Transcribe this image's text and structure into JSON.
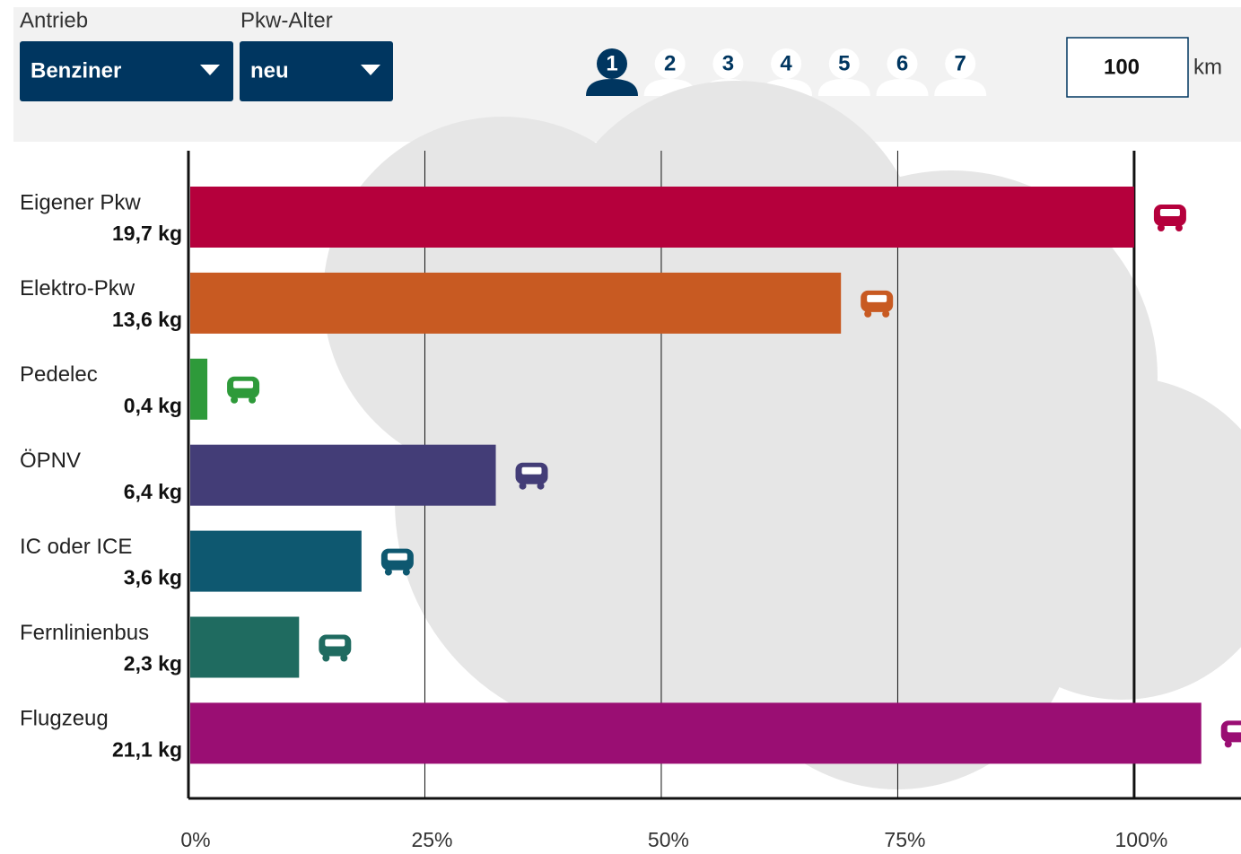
{
  "controls": {
    "drive_label": "Antrieb",
    "drive_value": "Benziner",
    "age_label": "Pkw-Alter",
    "age_value": "neu",
    "persons": [
      "1",
      "2",
      "3",
      "4",
      "5",
      "6",
      "7"
    ],
    "distance_value": "100",
    "distance_unit": "km"
  },
  "chart_data": {
    "type": "bar",
    "orientation": "horizontal",
    "categories": [
      "Eigener Pkw",
      "Elektro-Pkw",
      "Pedelec",
      "ÖPNV",
      "IC oder ICE",
      "Fernlinienbus",
      "Flugzeug"
    ],
    "amounts": [
      "19,7 kg",
      "13,6 kg",
      "0,4 kg",
      "6,4 kg",
      "3,6 kg",
      "2,3 kg",
      "21,1 kg"
    ],
    "values": [
      100,
      69,
      2,
      32.5,
      18.3,
      11.7,
      107.1
    ],
    "colors": [
      "#b5003c",
      "#c85a22",
      "#2e9a3a",
      "#433d77",
      "#0e5870",
      "#1f6b60",
      "#9a0e73"
    ],
    "xlim": [
      0,
      111.3
    ],
    "xticks": [
      {
        "value": 0,
        "label": "0%"
      },
      {
        "value": 25,
        "label": "25%"
      },
      {
        "value": 50,
        "label": "50%"
      },
      {
        "value": 75,
        "label": "75%"
      },
      {
        "value": 100,
        "label": "100%"
      }
    ],
    "grid": true
  }
}
